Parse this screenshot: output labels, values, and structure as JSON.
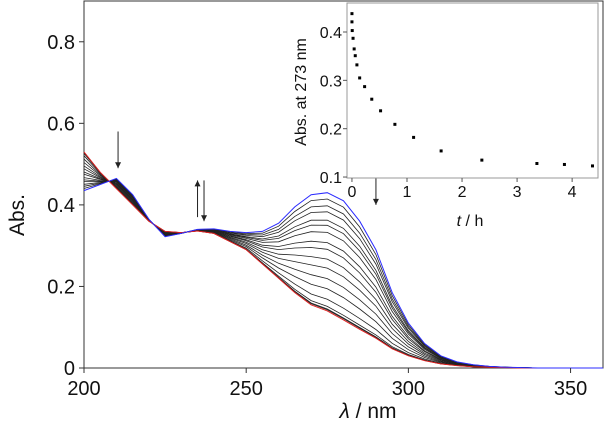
{
  "chart_data": [
    {
      "type": "line",
      "xlabel_symbol": "λ",
      "xlabel_unit": " / nm",
      "ylabel": "Abs.",
      "xlim": [
        200,
        360
      ],
      "ylim": [
        0,
        0.9
      ],
      "xticks": [
        "200",
        "250",
        "300",
        "350"
      ],
      "yticks": [
        "0",
        "0.2",
        "0.4",
        "0.6",
        "0.8"
      ],
      "grid": false,
      "x": [
        200,
        205,
        210,
        215,
        220,
        225,
        230,
        235,
        240,
        245,
        250,
        255,
        260,
        265,
        270,
        275,
        280,
        285,
        290,
        295,
        300,
        305,
        310,
        315,
        320,
        325,
        330,
        335,
        340,
        345,
        350,
        355,
        360
      ],
      "series": [
        {
          "color": "#2b2bff",
          "role": "initial",
          "values": [
            0.435,
            0.45,
            0.465,
            0.425,
            0.365,
            0.322,
            0.33,
            0.34,
            0.341,
            0.335,
            0.332,
            0.335,
            0.355,
            0.395,
            0.425,
            0.43,
            0.41,
            0.36,
            0.29,
            0.185,
            0.11,
            0.06,
            0.03,
            0.015,
            0.008,
            0.004,
            0.002,
            0.001,
            0,
            0,
            0,
            0,
            0
          ]
        },
        {
          "color": "#e02020",
          "role": "final",
          "values": [
            0.53,
            0.48,
            0.44,
            0.4,
            0.36,
            0.335,
            0.332,
            0.336,
            0.33,
            0.31,
            0.29,
            0.255,
            0.22,
            0.185,
            0.155,
            0.14,
            0.118,
            0.095,
            0.073,
            0.047,
            0.03,
            0.018,
            0.01,
            0.006,
            0.003,
            0.002,
            0.001,
            0,
            0,
            0,
            0,
            0,
            0
          ]
        }
      ],
      "intermediate_color": "#222222",
      "arrows": [
        {
          "x": 210.5,
          "from": 0.58,
          "to": 0.49,
          "direction": "down"
        },
        {
          "x": 235,
          "from": 0.37,
          "to": 0.46,
          "direction": "up"
        },
        {
          "x": 237,
          "from": 0.46,
          "to": 0.36,
          "direction": "down"
        },
        {
          "x": 290,
          "from": 0.47,
          "to": 0.4,
          "direction": "down"
        }
      ]
    },
    {
      "type": "scatter",
      "xlabel_symbol": "t",
      "xlabel_unit": " / h",
      "ylabel": "Abs. at 273 nm",
      "xlim": [
        -0.09,
        4.47
      ],
      "ylim": [
        0.098,
        0.46
      ],
      "xticks": [
        "0",
        "1",
        "2",
        "3",
        "4"
      ],
      "yticks": [
        "0.1",
        "0.2",
        "0.3",
        "0.4"
      ],
      "grid": false,
      "x": [
        0,
        0,
        0.005,
        0.02,
        0.04,
        0.06,
        0.09,
        0.14,
        0.23,
        0.36,
        0.52,
        0.78,
        1.12,
        1.62,
        2.36,
        3.36,
        3.86,
        4.37
      ],
      "y": [
        0.438,
        0.421,
        0.403,
        0.387,
        0.365,
        0.351,
        0.332,
        0.305,
        0.287,
        0.261,
        0.237,
        0.209,
        0.182,
        0.154,
        0.135,
        0.128,
        0.126,
        0.123
      ]
    }
  ]
}
